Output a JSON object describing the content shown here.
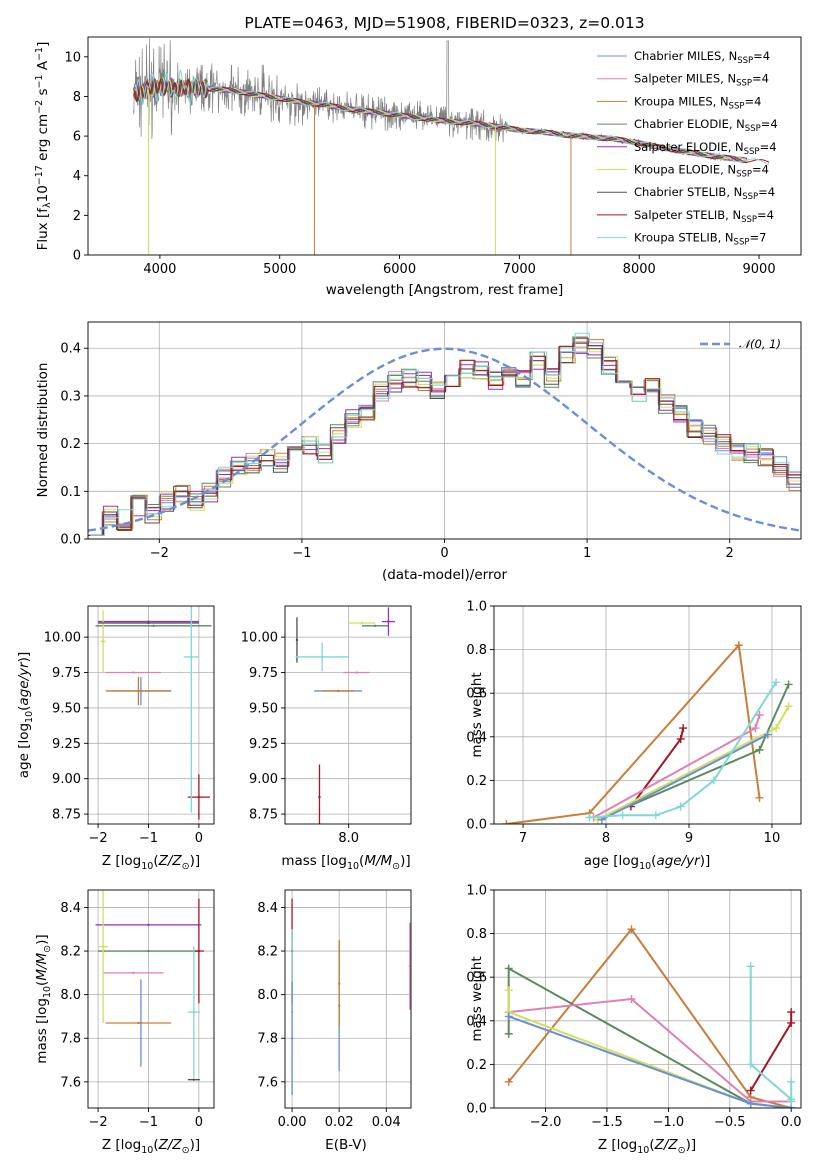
{
  "colors": {
    "Chabrier MILES": "#6a8fd8",
    "Salpeter MILES": "#e07fb5",
    "Kroupa MILES": "#c97d3a",
    "Chabrier ELODIE": "#5a8a5f",
    "Salpeter ELODIE": "#9a2fbf",
    "Kroupa ELODIE": "#d3df5a",
    "Chabrier STELIB": "#505050",
    "Salpeter STELIB": "#a31622",
    "Kroupa STELIB": "#7fd8d6",
    "data": "#808080",
    "normal": "#6a8fd8"
  },
  "chart_data": [
    {
      "id": "spectrum",
      "type": "line",
      "title": "PLATE=0463, MJD=51908, FIBERID=0323, z=0.013",
      "xlabel": "wavelength [Angstrom, rest frame]",
      "ylabel": "Flux [f_λ 10^-17 erg cm^-2 s^-1 A^-1]",
      "xlim": [
        3400,
        9350
      ],
      "ylim": [
        0,
        11
      ],
      "xticks": [
        4000,
        5000,
        6000,
        7000,
        8000,
        9000
      ],
      "yticks": [
        0,
        2,
        4,
        6,
        8,
        10
      ],
      "legend": [
        {
          "name": "Chabrier MILES",
          "label": "Chabrier MILES, N",
          "sub": "SSP",
          "tail": "=4"
        },
        {
          "name": "Salpeter MILES",
          "label": "Salpeter MILES, N",
          "sub": "SSP",
          "tail": "=4"
        },
        {
          "name": "Kroupa MILES",
          "label": "Kroupa MILES, N",
          "sub": "SSP",
          "tail": "=4"
        },
        {
          "name": "Chabrier ELODIE",
          "label": "Chabrier ELODIE, N",
          "sub": "SSP",
          "tail": "=4"
        },
        {
          "name": "Salpeter ELODIE",
          "label": "Salpeter ELODIE, N",
          "sub": "SSP",
          "tail": "=4"
        },
        {
          "name": "Kroupa ELODIE",
          "label": "Kroupa ELODIE, N",
          "sub": "SSP",
          "tail": "=4"
        },
        {
          "name": "Chabrier STELIB",
          "label": "Chabrier STELIB, N",
          "sub": "SSP",
          "tail": "=4"
        },
        {
          "name": "Salpeter STELIB",
          "label": "Salpeter STELIB, N",
          "sub": "SSP",
          "tail": "=4"
        },
        {
          "name": "Kroupa STELIB",
          "label": "Kroupa STELIB, N",
          "sub": "SSP",
          "tail": "=7"
        }
      ],
      "continuum": {
        "wavelength": [
          3800,
          4000,
          4200,
          4400,
          4600,
          4800,
          5000,
          5200,
          5400,
          5600,
          5800,
          6000,
          6200,
          6400,
          6600,
          6800,
          7000,
          7200,
          7400,
          7600,
          7800,
          8000,
          8200,
          8400,
          8600,
          8800,
          9000,
          9100
        ],
        "flux": [
          8.2,
          8.5,
          8.4,
          8.4,
          8.3,
          8.1,
          7.9,
          7.7,
          7.55,
          7.35,
          7.2,
          7.05,
          6.9,
          6.75,
          6.65,
          6.5,
          6.3,
          6.2,
          6.05,
          5.95,
          5.85,
          5.65,
          5.4,
          5.2,
          5.0,
          4.85,
          4.7,
          4.65
        ]
      },
      "model_spikes": [
        {
          "series": "Kroupa ELODIE",
          "wavelength": 3905,
          "flux": 0
        },
        {
          "series": "Kroupa MILES",
          "wavelength": 5290,
          "flux": 0
        },
        {
          "series": "Kroupa ELODIE",
          "wavelength": 6800,
          "flux": 0
        },
        {
          "series": "Kroupa MILES",
          "wavelength": 7430,
          "flux": 0
        }
      ]
    },
    {
      "id": "residuals",
      "type": "bar",
      "xlabel": "(data-model)/error",
      "ylabel": "Normed distribution",
      "xlim": [
        -2.5,
        2.5
      ],
      "ylim": [
        0,
        0.455
      ],
      "xticks": [
        -2,
        -1,
        0,
        1,
        2
      ],
      "yticks": [
        0.0,
        0.1,
        0.2,
        0.3,
        0.4
      ],
      "grid": true,
      "legend_label": "𝒩(0, 1)",
      "bin_edges_start": -2.5,
      "bin_width": 0.1,
      "histogram": [
        0.03,
        0.05,
        0.04,
        0.07,
        0.05,
        0.08,
        0.09,
        0.08,
        0.1,
        0.13,
        0.15,
        0.16,
        0.17,
        0.16,
        0.19,
        0.2,
        0.18,
        0.22,
        0.25,
        0.27,
        0.31,
        0.33,
        0.34,
        0.33,
        0.31,
        0.33,
        0.36,
        0.35,
        0.33,
        0.35,
        0.34,
        0.37,
        0.34,
        0.39,
        0.41,
        0.4,
        0.36,
        0.34,
        0.3,
        0.33,
        0.28,
        0.26,
        0.23,
        0.22,
        0.2,
        0.18,
        0.18,
        0.17,
        0.15,
        0.12,
        0.1,
        0.09,
        0.08,
        0.07,
        0.06,
        0.05,
        0.05,
        0.04,
        0.03
      ]
    },
    {
      "id": "z-age",
      "type": "scatter",
      "xlabel": "Z [log10(Z/Z⊙)]",
      "ylabel": "age [log10(age/yr)]",
      "xlim": [
        -2.2,
        0.3
      ],
      "ylim": [
        8.68,
        10.22
      ],
      "xticks": [
        -2,
        -1,
        0
      ],
      "yticks": [
        8.75,
        9.0,
        9.25,
        9.5,
        9.75,
        10.0
      ],
      "grid": true,
      "errorbars": [
        {
          "series": "Chabrier MILES",
          "x": -1.15,
          "y": 9.62,
          "xerr": 0.6,
          "yerr": 0.1
        },
        {
          "series": "Salpeter MILES",
          "x": -1.3,
          "y": 9.75,
          "xerr": 0.55,
          "yerr": 0.0
        },
        {
          "series": "Kroupa MILES",
          "x": -1.2,
          "y": 9.62,
          "xerr": 0.65,
          "yerr": 0.1
        },
        {
          "series": "Chabrier ELODIE",
          "x": -0.9,
          "y": 10.08,
          "xerr": 1.15,
          "yerr": 0.0
        },
        {
          "series": "Salpeter ELODIE",
          "x": -1.0,
          "y": 10.11,
          "xerr": 1.0,
          "yerr": 0.0
        },
        {
          "series": "Kroupa ELODIE",
          "x": -1.9,
          "y": 9.97,
          "xerr": 0.05,
          "yerr": 0.22
        },
        {
          "series": "Chabrier STELIB",
          "x": -1.0,
          "y": 10.1,
          "xerr": 1.0,
          "yerr": 0.0
        },
        {
          "series": "Salpeter STELIB",
          "x": 0.0,
          "y": 8.87,
          "xerr": 0.22,
          "yerr": 0.16
        },
        {
          "series": "Kroupa STELIB",
          "x": -0.15,
          "y": 9.86,
          "xerr": 0.15,
          "yerr": 1.1
        }
      ]
    },
    {
      "id": "mass-age",
      "type": "scatter",
      "xlabel": "mass [log10(M/M⊙)]",
      "ylabel": "",
      "xlim": [
        7.52,
        8.47
      ],
      "ylim": [
        8.68,
        10.22
      ],
      "xticks": [
        7.5,
        8.0
      ],
      "yticks": [
        8.75,
        9.0,
        9.25,
        9.5,
        9.75,
        10.0
      ],
      "grid": true,
      "errorbars": [
        {
          "series": "Chabrier MILES",
          "x": 7.92,
          "y": 9.62,
          "xerr": 0.18,
          "yerr": 0.0
        },
        {
          "series": "Salpeter MILES",
          "x": 8.06,
          "y": 9.75,
          "xerr": 0.1,
          "yerr": 0.0
        },
        {
          "series": "Kroupa MILES",
          "x": 7.92,
          "y": 9.62,
          "xerr": 0.12,
          "yerr": 0.0
        },
        {
          "series": "Chabrier ELODIE",
          "x": 8.2,
          "y": 10.08,
          "xerr": 0.1,
          "yerr": 0.0
        },
        {
          "series": "Salpeter ELODIE",
          "x": 8.3,
          "y": 10.11,
          "xerr": 0.05,
          "yerr": 0.1
        },
        {
          "series": "Kroupa ELODIE",
          "x": 8.1,
          "y": 10.1,
          "xerr": 0.1,
          "yerr": 0.0
        },
        {
          "series": "Chabrier STELIB",
          "x": 7.61,
          "y": 9.98,
          "xerr": 0.0,
          "yerr": 0.16
        },
        {
          "series": "Salpeter STELIB",
          "x": 7.78,
          "y": 8.87,
          "xerr": 0.0,
          "yerr": 0.23
        },
        {
          "series": "Kroupa STELIB",
          "x": 7.8,
          "y": 9.86,
          "xerr": 0.2,
          "yerr": 0.1
        }
      ]
    },
    {
      "id": "age-weight",
      "type": "line",
      "xlabel": "age [log10(age/yr)]",
      "ylabel": "mass weight",
      "xlim": [
        6.65,
        10.35
      ],
      "ylim": [
        0,
        1
      ],
      "xticks": [
        7,
        8,
        9,
        10
      ],
      "yticks": [
        0.0,
        0.2,
        0.4,
        0.6,
        0.8,
        1.0
      ],
      "grid": true,
      "series": [
        {
          "name": "Kroupa MILES",
          "x": [
            6.8,
            7.8,
            9.6,
            9.85
          ],
          "y": [
            0.0,
            0.05,
            0.82,
            0.12
          ]
        },
        {
          "name": "Salpeter STELIB",
          "x": [
            8.3,
            8.9,
            8.93
          ],
          "y": [
            0.08,
            0.39,
            0.44
          ]
        },
        {
          "name": "Salpeter MILES",
          "x": [
            7.85,
            9.8,
            9.85
          ],
          "y": [
            0.03,
            0.44,
            0.5
          ]
        },
        {
          "name": "Chabrier ELODIE",
          "x": [
            7.9,
            9.85,
            10.2
          ],
          "y": [
            0.02,
            0.34,
            0.64
          ]
        },
        {
          "name": "Kroupa ELODIE",
          "x": [
            7.9,
            10.05,
            10.2
          ],
          "y": [
            0.02,
            0.44,
            0.54
          ]
        },
        {
          "name": "Chabrier MILES",
          "x": [
            7.95,
            9.95
          ],
          "y": [
            0.02,
            0.41
          ]
        },
        {
          "name": "Kroupa STELIB",
          "x": [
            7.8,
            8.2,
            8.6,
            8.9,
            9.3,
            10.05
          ],
          "y": [
            0.03,
            0.04,
            0.04,
            0.08,
            0.2,
            0.65
          ]
        }
      ]
    },
    {
      "id": "z-mass",
      "type": "scatter",
      "xlabel": "Z [log10(Z/Z⊙)]",
      "ylabel": "mass [log10(M/M⊙)]",
      "xlim": [
        -2.2,
        0.3
      ],
      "ylim": [
        7.48,
        8.48
      ],
      "xticks": [
        -2,
        -1,
        0
      ],
      "yticks": [
        7.6,
        7.8,
        8.0,
        8.2,
        8.4
      ],
      "grid": true,
      "errorbars": [
        {
          "series": "Chabrier MILES",
          "x": -1.15,
          "y": 7.87,
          "xerr": 0.0,
          "yerr": 0.2
        },
        {
          "series": "Salpeter MILES",
          "x": -1.3,
          "y": 8.1,
          "xerr": 0.6,
          "yerr": 0.0
        },
        {
          "series": "Kroupa MILES",
          "x": -1.2,
          "y": 7.87,
          "xerr": 0.65,
          "yerr": 0.0
        },
        {
          "series": "Chabrier ELODIE",
          "x": -1.0,
          "y": 8.2,
          "xerr": 1.0,
          "yerr": 0.0
        },
        {
          "series": "Salpeter ELODIE",
          "x": -1.0,
          "y": 8.32,
          "xerr": 1.05,
          "yerr": 0.0
        },
        {
          "series": "Kroupa ELODIE",
          "x": -1.9,
          "y": 8.22,
          "xerr": 0.1,
          "yerr": 0.35
        },
        {
          "series": "Chabrier STELIB",
          "x": -0.1,
          "y": 7.61,
          "xerr": 0.12,
          "yerr": 0.0
        },
        {
          "series": "Salpeter STELIB",
          "x": 0.0,
          "y": 8.2,
          "xerr": 0.1,
          "yerr": 0.24
        },
        {
          "series": "Kroupa STELIB",
          "x": -0.1,
          "y": 7.92,
          "xerr": 0.12,
          "yerr": 0.3
        }
      ]
    },
    {
      "id": "ebv-mass",
      "type": "scatter",
      "xlabel": "E(B-V)",
      "ylabel": "",
      "xlim": [
        -0.003,
        0.0505
      ],
      "ylim": [
        7.48,
        8.48
      ],
      "xticks": [
        0.0,
        0.02,
        0.04
      ],
      "yticks": [
        7.6,
        7.8,
        8.0,
        8.2,
        8.4
      ],
      "grid": true,
      "errorbars": [
        {
          "series": "Chabrier MILES",
          "x": 0.02,
          "y": 7.95,
          "xerr": 0.0,
          "yerr": 0.3
        },
        {
          "series": "Kroupa MILES",
          "x": 0.02,
          "y": 8.05,
          "xerr": 0.0,
          "yerr": 0.2
        },
        {
          "series": "Salpeter MILES",
          "x": 0.05,
          "y": 8.13,
          "xerr": 0.0,
          "yerr": 0.2
        },
        {
          "series": "Salpeter STELIB",
          "x": 0.0,
          "y": 8.2,
          "xerr": 0.0,
          "yerr": 0.24
        },
        {
          "series": "Kroupa STELIB",
          "x": 0.0,
          "y": 7.92,
          "xerr": 0.0,
          "yerr": 0.38
        },
        {
          "series": "Chabrier MILES",
          "x": 0.0,
          "y": 7.8,
          "xerr": 0.0,
          "yerr": 0.26
        }
      ]
    },
    {
      "id": "z-weight",
      "type": "line",
      "xlabel": "Z [log10(Z/Z⊙)]",
      "ylabel": "mass weight",
      "xlim": [
        -2.42,
        0.08
      ],
      "ylim": [
        0,
        1
      ],
      "xticks": [
        -2.0,
        -1.5,
        -1.0,
        -0.5,
        0.0
      ],
      "yticks": [
        0.0,
        0.2,
        0.4,
        0.6,
        0.8,
        1.0
      ],
      "grid": true,
      "series": [
        {
          "name": "Kroupa MILES",
          "x": [
            -2.3,
            -1.3,
            -0.33,
            0.0
          ],
          "y": [
            0.12,
            0.82,
            0.05,
            0.0
          ]
        },
        {
          "name": "Chabrier ELODIE",
          "x": [
            -2.3,
            -2.3,
            -2.3,
            -0.33,
            0.0
          ],
          "y": [
            0.34,
            0.44,
            0.64,
            0.02,
            0.0
          ]
        },
        {
          "name": "Salpeter MILES",
          "x": [
            -2.3,
            -1.3,
            -0.33,
            0.0
          ],
          "y": [
            0.44,
            0.5,
            0.03,
            0.03
          ]
        },
        {
          "name": "Kroupa ELODIE",
          "x": [
            -2.3,
            -2.3,
            -0.33,
            0.0
          ],
          "y": [
            0.54,
            0.44,
            0.02,
            0.0
          ]
        },
        {
          "name": "Chabrier MILES",
          "x": [
            -2.3,
            -0.33,
            0.0
          ],
          "y": [
            0.42,
            0.02,
            0.0
          ]
        },
        {
          "name": "Salpeter STELIB",
          "x": [
            -0.33,
            0.0,
            0.0
          ],
          "y": [
            0.08,
            0.39,
            0.44
          ]
        },
        {
          "name": "Kroupa STELIB",
          "x": [
            -0.33,
            -0.33,
            0.0,
            0.0,
            0.0
          ],
          "y": [
            0.65,
            0.2,
            0.04,
            0.12,
            0.03
          ]
        }
      ]
    }
  ]
}
